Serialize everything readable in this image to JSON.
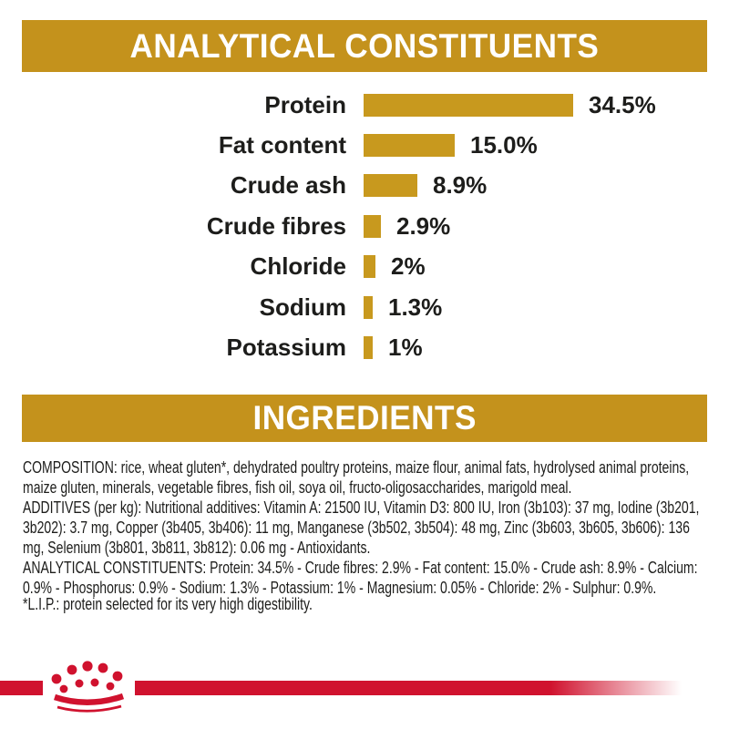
{
  "colors": {
    "header_gold": "#c4921c",
    "bar_gold": "#c8991e",
    "brand_red": "#d0122e",
    "text_dark": "#1d1d1b",
    "header_text": "#ffffff"
  },
  "header_analytical": {
    "label": "ANALYTICAL CONSTITUENTS"
  },
  "header_ingredients": {
    "label": "INGREDIENTS"
  },
  "chart_data": {
    "type": "bar",
    "orientation": "horizontal",
    "title": "ANALYTICAL CONSTITUENTS",
    "categories": [
      "Protein",
      "Fat content",
      "Crude ash",
      "Crude fibres",
      "Chloride",
      "Sodium",
      "Potassium"
    ],
    "values": [
      34.5,
      15.0,
      8.9,
      2.9,
      2,
      1.3,
      1
    ],
    "value_labels": [
      "34.5%",
      "15.0%",
      "8.9%",
      "2.9%",
      "2%",
      "1.3%",
      "1%"
    ],
    "unit": "%",
    "xlim": [
      0,
      40
    ],
    "grid": false,
    "legend": "none",
    "bar_color": "#c8991e"
  },
  "ingredients": {
    "composition": "COMPOSITION: rice, wheat gluten*, dehydrated poultry proteins, maize flour, animal fats, hydrolysed animal proteins, maize gluten, minerals, vegetable fibres, fish oil, soya oil, fructo-oligosaccharides, marigold meal.",
    "additives": "ADDITIVES (per kg): Nutritional additives: Vitamin A: 21500 IU, Vitamin D3: 800 IU, Iron (3b103): 37 mg, Iodine (3b201, 3b202): 3.7 mg, Copper (3b405, 3b406): 11 mg, Manganese (3b502, 3b504): 48 mg, Zinc (3b603, 3b605, 3b606): 136 mg, Selenium (3b801, 3b811, 3b812): 0.06 mg - Antioxidants.",
    "analytical": "ANALYTICAL CONSTITUENTS: Protein: 34.5% - Crude fibres: 2.9% - Fat content: 15.0% - Crude ash: 8.9% - Calcium: 0.9% - Phosphorus: 0.9% - Sodium: 1.3% - Potassium: 1% - Magnesium: 0.05% - Chloride: 2% - Sulphur: 0.9%.",
    "footnote": "*L.I.P.: protein selected for its very high digestibility."
  },
  "footer": {
    "logo_icon": "royal-canin-crown-icon"
  }
}
